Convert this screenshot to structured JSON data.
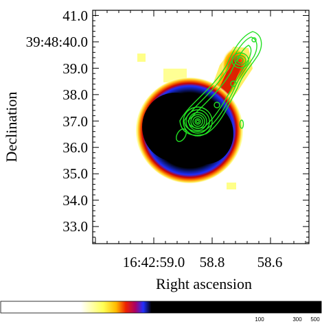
{
  "figure": {
    "ylabel": "Declination",
    "xlabel": "Right ascension",
    "y_ticks": [
      "41.0",
      "39:48:40.0",
      "39.0",
      "38.0",
      "37.0",
      "36.0",
      "35.0",
      "34.0",
      "33.0"
    ],
    "x_ticks": [
      "16:42:59.0",
      "58.8",
      "58.6"
    ],
    "colorbar_ticks": [
      "100",
      "300",
      "500"
    ],
    "contour_color": "#22e022",
    "colormap": [
      "#ffffff",
      "#ffff66",
      "#ffcc00",
      "#ff6600",
      "#cc0000",
      "#b0006e",
      "#2030ff",
      "#000000"
    ]
  }
}
